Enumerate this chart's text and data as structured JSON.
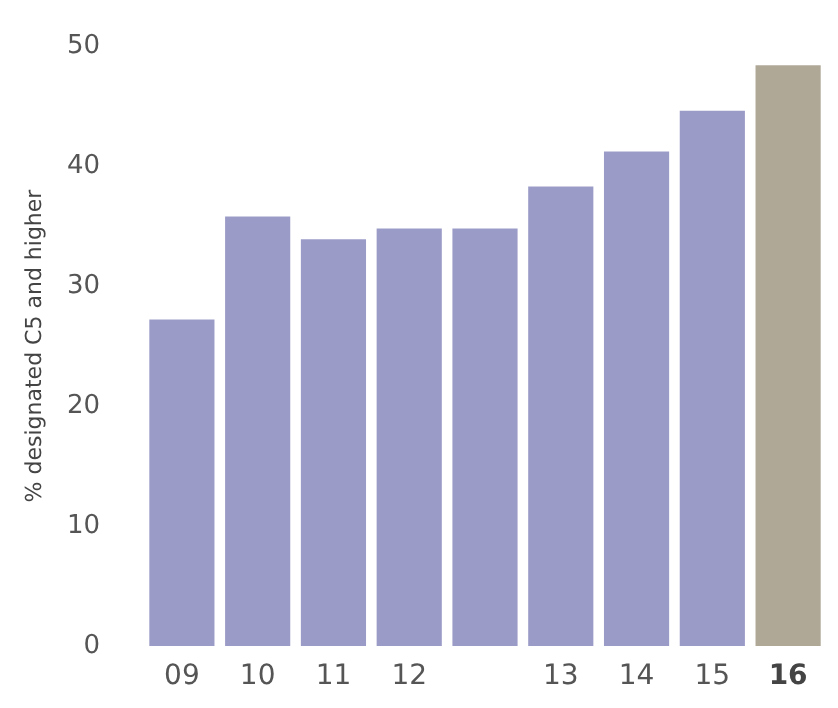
{
  "chart_data": {
    "type": "bar",
    "ylabel": "% designated C5 and higher",
    "categories": [
      "09",
      "10",
      "11",
      "12",
      null,
      "13",
      "14",
      "15",
      "16"
    ],
    "values": [
      27.2,
      35.8,
      33.9,
      34.8,
      34.8,
      38.3,
      41.2,
      44.6,
      48.4
    ],
    "colors": [
      "#9b9bc8",
      "#9b9bc8",
      "#9b9bc8",
      "#9b9bc8",
      "#9b9bc8",
      "#9b9bc8",
      "#9b9bc8",
      "#9b9bc8",
      "#afa897"
    ],
    "ylim": [
      0,
      50
    ],
    "yticks": [
      0,
      10,
      20,
      30,
      40,
      50
    ],
    "grid": false
  }
}
